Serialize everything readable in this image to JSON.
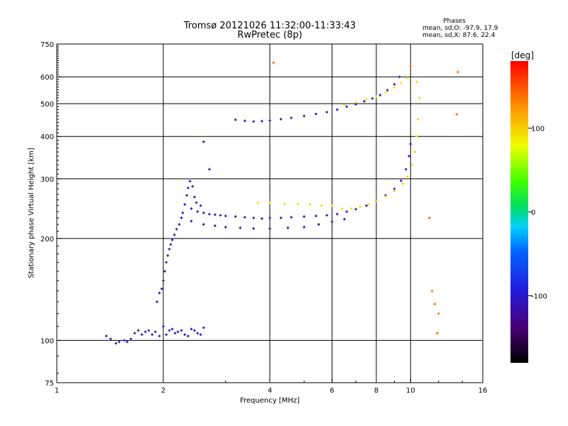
{
  "chart_data": {
    "type": "scatter",
    "title": "Tromsø 20121026 11:32:00-11:33:43",
    "subtitle": "RwPretec (8p)",
    "stats": {
      "heading": "Phases",
      "line_o": "mean, sd,O: -97.9, 17.9",
      "line_x": "mean, sd,X:  87.6, 22.4"
    },
    "xlabel": "Frequency [MHz]",
    "ylabel": "Stationary phase Virtual Height [km]",
    "x_scale": "log",
    "y_scale": "log",
    "xlim": [
      1,
      16
    ],
    "ylim": [
      75,
      750
    ],
    "x_ticks": [
      1,
      2,
      4,
      6,
      8,
      10,
      16
    ],
    "x_tick_labels": [
      "1",
      "2",
      "4",
      "6",
      "8",
      "10",
      "16"
    ],
    "x_grid": [
      2,
      4,
      6,
      8,
      10
    ],
    "y_ticks": [
      75,
      100,
      200,
      300,
      400,
      500,
      600,
      750
    ],
    "y_tick_labels": [
      "75",
      "100",
      "200",
      "300",
      "400",
      "500",
      "600",
      "750"
    ],
    "y_grid": [
      100,
      200,
      300,
      400,
      500,
      600
    ],
    "grid": true,
    "colorbar": {
      "label": "[deg]",
      "range": [
        -180,
        180
      ],
      "ticks": [
        100,
        0,
        -100
      ],
      "tick_labels": [
        "100",
        "0",
        "-100"
      ],
      "colormap": "rainbow (black-purple-blue-cyan-green-yellow-red)"
    },
    "series": [
      {
        "values": [
          [
            1.38,
            103
          ],
          [
            1.42,
            101
          ],
          [
            1.47,
            98
          ],
          [
            1.5,
            99
          ],
          [
            1.55,
            100
          ],
          [
            1.58,
            99
          ],
          [
            1.62,
            101
          ],
          [
            1.66,
            105
          ],
          [
            1.7,
            107
          ],
          [
            1.74,
            104
          ],
          [
            1.78,
            106
          ],
          [
            1.82,
            107
          ],
          [
            1.86,
            104
          ],
          [
            1.9,
            106
          ],
          [
            1.95,
            103
          ],
          [
            2.0,
            110
          ],
          [
            2.04,
            104
          ],
          [
            2.08,
            107
          ],
          [
            2.12,
            108
          ],
          [
            2.16,
            105
          ],
          [
            2.2,
            106
          ],
          [
            2.25,
            107
          ],
          [
            2.3,
            104
          ],
          [
            2.35,
            103
          ],
          [
            2.4,
            108
          ],
          [
            2.45,
            107
          ],
          [
            2.5,
            105
          ],
          [
            2.55,
            104
          ],
          [
            2.6,
            109
          ]
        ],
        "phase": -105
      },
      {
        "values": [
          [
            1.92,
            130
          ],
          [
            1.95,
            138
          ],
          [
            1.98,
            142
          ],
          [
            2.0,
            150
          ],
          [
            2.02,
            160
          ],
          [
            2.04,
            170
          ],
          [
            2.06,
            178
          ],
          [
            2.08,
            186
          ],
          [
            2.1,
            192
          ],
          [
            2.12,
            198
          ],
          [
            2.15,
            205
          ],
          [
            2.18,
            213
          ],
          [
            2.22,
            220
          ],
          [
            2.25,
            230
          ],
          [
            2.27,
            238
          ],
          [
            2.3,
            252
          ],
          [
            2.33,
            268
          ],
          [
            2.35,
            282
          ],
          [
            2.38,
            295
          ],
          [
            2.42,
            285
          ],
          [
            2.45,
            265
          ],
          [
            2.48,
            255
          ],
          [
            2.55,
            250
          ],
          [
            2.6,
            386
          ],
          [
            2.7,
            320
          ]
        ],
        "phase": -110
      },
      {
        "values": [
          [
            2.4,
            245
          ],
          [
            2.5,
            240
          ],
          [
            2.6,
            238
          ],
          [
            2.7,
            236
          ],
          [
            2.8,
            235
          ],
          [
            2.9,
            234
          ],
          [
            3.0,
            233
          ],
          [
            3.2,
            232
          ],
          [
            3.4,
            231
          ],
          [
            3.6,
            230
          ],
          [
            3.8,
            229
          ],
          [
            4.0,
            230
          ],
          [
            4.3,
            230
          ],
          [
            4.6,
            231
          ],
          [
            5.0,
            232
          ],
          [
            5.4,
            233
          ],
          [
            5.8,
            234
          ],
          [
            6.2,
            236
          ],
          [
            6.6,
            240
          ],
          [
            7.0,
            244
          ],
          [
            7.5,
            250
          ],
          [
            8.0,
            258
          ],
          [
            8.5,
            268
          ],
          [
            9.0,
            280
          ],
          [
            9.4,
            296
          ],
          [
            9.7,
            320
          ],
          [
            9.9,
            350
          ],
          [
            10.0,
            380
          ]
        ],
        "phase": -110
      },
      {
        "values": [
          [
            2.4,
            225
          ],
          [
            2.6,
            220
          ],
          [
            2.8,
            218
          ],
          [
            3.0,
            216
          ],
          [
            3.3,
            215
          ],
          [
            3.6,
            214
          ],
          [
            4.0,
            214
          ],
          [
            4.5,
            215
          ],
          [
            5.0,
            216
          ],
          [
            5.5,
            220
          ],
          [
            6.0,
            224
          ],
          [
            6.5,
            228
          ]
        ],
        "phase": -125
      },
      {
        "values": [
          [
            3.7,
            255
          ],
          [
            4.0,
            255
          ],
          [
            4.4,
            253
          ],
          [
            4.8,
            253
          ],
          [
            5.2,
            252
          ],
          [
            5.6,
            250
          ],
          [
            6.0,
            250
          ],
          [
            6.4,
            245
          ],
          [
            6.8,
            245
          ],
          [
            7.2,
            248
          ],
          [
            7.6,
            252
          ],
          [
            8.0,
            258
          ],
          [
            8.5,
            266
          ],
          [
            9.0,
            276
          ],
          [
            9.5,
            290
          ],
          [
            9.8,
            305
          ],
          [
            10.1,
            330
          ],
          [
            10.3,
            360
          ],
          [
            10.4,
            400
          ],
          [
            10.5,
            450
          ],
          [
            10.6,
            520
          ],
          [
            10.4,
            580
          ]
        ],
        "phase": 95
      },
      {
        "values": [
          [
            3.2,
            448
          ],
          [
            3.4,
            445
          ],
          [
            3.6,
            443
          ],
          [
            3.8,
            444
          ],
          [
            4.0,
            446
          ],
          [
            4.3,
            450
          ],
          [
            4.6,
            454
          ],
          [
            5.0,
            460
          ],
          [
            5.4,
            466
          ],
          [
            5.8,
            472
          ],
          [
            6.2,
            480
          ],
          [
            6.6,
            490
          ],
          [
            7.0,
            498
          ],
          [
            7.4,
            508
          ],
          [
            7.8,
            518
          ],
          [
            8.2,
            530
          ],
          [
            8.6,
            548
          ],
          [
            9.0,
            570
          ],
          [
            9.3,
            600
          ]
        ],
        "phase": -100
      },
      {
        "values": [
          [
            6.5,
            495
          ],
          [
            7.0,
            505
          ],
          [
            7.5,
            515
          ],
          [
            8.0,
            525
          ],
          [
            8.5,
            540
          ],
          [
            9.0,
            558
          ],
          [
            9.4,
            575
          ],
          [
            9.8,
            595
          ]
        ],
        "phase": 90
      },
      {
        "values": [
          [
            4.1,
            660
          ],
          [
            10.0,
            645
          ],
          [
            11.3,
            230
          ],
          [
            11.5,
            140
          ],
          [
            11.7,
            128
          ],
          [
            11.9,
            105
          ],
          [
            12.0,
            120
          ],
          [
            13.5,
            465
          ],
          [
            13.6,
            620
          ]
        ],
        "phase": 140
      }
    ]
  }
}
